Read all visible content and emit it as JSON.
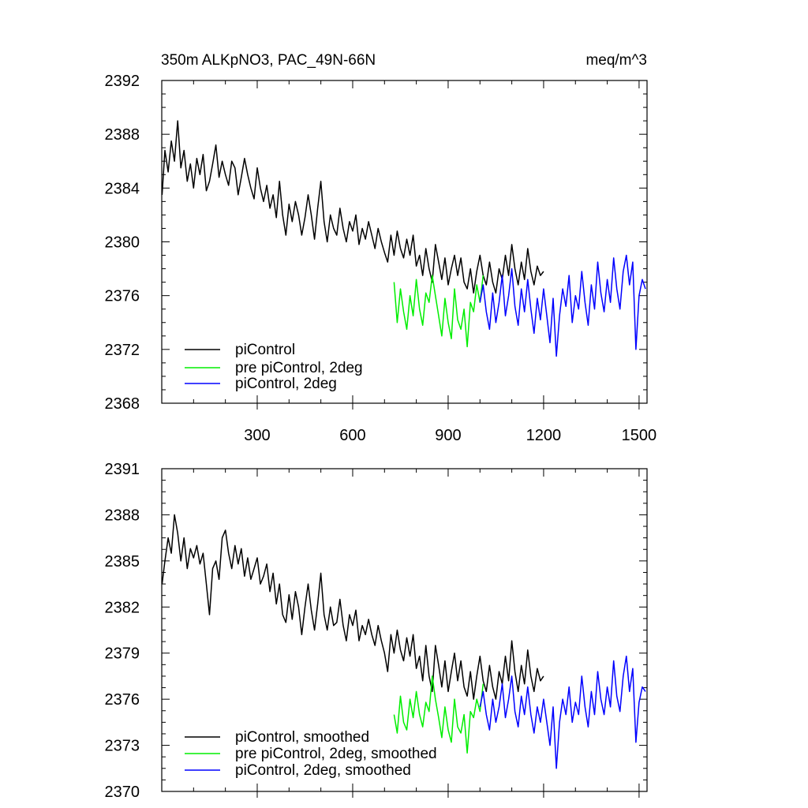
{
  "header": {
    "title": "350m ALKpNO3, PAC_49N-66N",
    "units": "meq/m^3"
  },
  "chart_data": [
    {
      "type": "line",
      "panel": "top",
      "xlim": [
        0,
        1525
      ],
      "ylim": [
        2368,
        2392
      ],
      "xticks": [
        300,
        600,
        900,
        1200,
        1500
      ],
      "yticks": [
        2368,
        2372,
        2376,
        2380,
        2384,
        2388,
        2392
      ],
      "legend_position": "bottom-left",
      "series": [
        {
          "name": "piControl",
          "color": "#000000",
          "x": [
            1,
            10,
            20,
            30,
            40,
            50,
            60,
            70,
            80,
            90,
            100,
            110,
            120,
            130,
            140,
            150,
            160,
            170,
            180,
            190,
            200,
            210,
            220,
            230,
            240,
            250,
            260,
            270,
            280,
            290,
            300,
            310,
            320,
            330,
            340,
            350,
            360,
            370,
            380,
            390,
            400,
            410,
            420,
            430,
            440,
            450,
            460,
            470,
            480,
            490,
            500,
            510,
            520,
            530,
            540,
            550,
            560,
            570,
            580,
            590,
            600,
            610,
            620,
            630,
            640,
            650,
            660,
            670,
            680,
            690,
            700,
            710,
            720,
            730,
            740,
            750,
            760,
            770,
            780,
            790,
            800,
            810,
            820,
            830,
            840,
            850,
            860,
            870,
            880,
            890,
            900,
            910,
            920,
            930,
            940,
            950,
            960,
            970,
            980,
            990,
            1000,
            1010,
            1020,
            1030,
            1040,
            1050,
            1060,
            1070,
            1080,
            1090,
            1100,
            1110,
            1120,
            1130,
            1140,
            1150,
            1160,
            1170,
            1180,
            1190,
            1200
          ],
          "y": [
            2383.5,
            2386.8,
            2385.2,
            2387.5,
            2386.0,
            2389.0,
            2385.5,
            2386.8,
            2384.5,
            2385.8,
            2384.0,
            2386.2,
            2385.0,
            2386.5,
            2383.8,
            2384.5,
            2385.8,
            2387.2,
            2384.8,
            2386.0,
            2385.0,
            2384.2,
            2386.0,
            2385.5,
            2383.5,
            2384.8,
            2386.2,
            2385.0,
            2384.0,
            2383.2,
            2385.5,
            2384.0,
            2383.0,
            2384.2,
            2382.5,
            2383.5,
            2381.8,
            2384.5,
            2382.0,
            2380.5,
            2382.8,
            2381.5,
            2383.0,
            2382.0,
            2380.5,
            2381.8,
            2383.5,
            2382.0,
            2380.2,
            2382.5,
            2384.5,
            2381.5,
            2380.0,
            2382.0,
            2381.0,
            2380.5,
            2382.5,
            2381.0,
            2380.0,
            2381.5,
            2380.8,
            2382.0,
            2379.8,
            2381.0,
            2380.2,
            2381.5,
            2380.5,
            2379.5,
            2381.0,
            2380.0,
            2379.2,
            2378.5,
            2380.5,
            2379.0,
            2380.8,
            2379.5,
            2378.8,
            2380.2,
            2379.0,
            2380.5,
            2378.2,
            2379.0,
            2377.5,
            2379.5,
            2378.0,
            2377.0,
            2379.8,
            2378.5,
            2377.2,
            2378.8,
            2376.8,
            2378.0,
            2379.0,
            2377.5,
            2378.8,
            2377.0,
            2376.5,
            2378.0,
            2376.2,
            2377.8,
            2379.0,
            2377.5,
            2376.8,
            2378.5,
            2377.0,
            2376.2,
            2378.0,
            2377.2,
            2379.0,
            2377.5,
            2379.8,
            2378.0,
            2376.8,
            2378.5,
            2377.2,
            2379.5,
            2377.8,
            2376.8,
            2378.2,
            2377.5,
            2377.8
          ]
        },
        {
          "name": "pre piControl, 2deg",
          "color": "#00ee00",
          "x": [
            730,
            740,
            750,
            760,
            770,
            780,
            790,
            800,
            810,
            820,
            830,
            840,
            850,
            860,
            870,
            880,
            890,
            900,
            910,
            920,
            930,
            940,
            950,
            960,
            970,
            980,
            990,
            1000,
            1010
          ],
          "y": [
            2377.0,
            2374.0,
            2376.5,
            2374.8,
            2373.5,
            2376.0,
            2374.5,
            2377.2,
            2375.0,
            2373.8,
            2376.2,
            2375.5,
            2377.5,
            2376.0,
            2374.5,
            2373.0,
            2375.8,
            2374.0,
            2372.8,
            2376.5,
            2374.2,
            2373.5,
            2375.0,
            2372.2,
            2375.5,
            2374.8,
            2376.8,
            2375.5,
            2377.5
          ]
        },
        {
          "name": "piControl, 2deg",
          "color": "#0000ff",
          "x": [
            1000,
            1010,
            1020,
            1030,
            1040,
            1050,
            1060,
            1070,
            1080,
            1090,
            1100,
            1110,
            1120,
            1130,
            1140,
            1150,
            1160,
            1170,
            1180,
            1190,
            1200,
            1210,
            1220,
            1230,
            1240,
            1250,
            1260,
            1270,
            1280,
            1290,
            1300,
            1310,
            1320,
            1330,
            1340,
            1350,
            1360,
            1370,
            1380,
            1390,
            1400,
            1410,
            1420,
            1430,
            1440,
            1450,
            1460,
            1470,
            1480,
            1490,
            1500,
            1510,
            1520
          ],
          "y": [
            2375.5,
            2376.8,
            2374.8,
            2373.5,
            2376.2,
            2374.0,
            2375.5,
            2377.5,
            2374.5,
            2376.0,
            2378.0,
            2375.2,
            2373.8,
            2376.5,
            2374.8,
            2377.2,
            2375.0,
            2373.2,
            2375.8,
            2374.2,
            2376.5,
            2374.5,
            2372.5,
            2375.8,
            2371.5,
            2374.5,
            2376.5,
            2375.2,
            2377.5,
            2374.0,
            2376.0,
            2375.0,
            2377.8,
            2375.5,
            2373.8,
            2376.8,
            2375.0,
            2378.5,
            2376.2,
            2374.8,
            2377.2,
            2375.5,
            2378.8,
            2376.5,
            2375.0,
            2377.8,
            2379.0,
            2376.8,
            2378.5,
            2372.0,
            2376.0,
            2377.2,
            2376.5
          ]
        }
      ]
    },
    {
      "type": "line",
      "panel": "bottom",
      "xlim": [
        0,
        1525
      ],
      "ylim": [
        2370,
        2391
      ],
      "xticks": [
        300,
        600,
        900,
        1200,
        1500
      ],
      "yticks": [
        2370,
        2373,
        2376,
        2379,
        2382,
        2385,
        2388,
        2391
      ],
      "legend_position": "bottom-left",
      "series": [
        {
          "name": "piControl, smoothed",
          "color": "#000000",
          "x": [
            1,
            10,
            20,
            30,
            40,
            50,
            60,
            70,
            80,
            90,
            100,
            110,
            120,
            130,
            140,
            150,
            160,
            170,
            180,
            190,
            200,
            210,
            220,
            230,
            240,
            250,
            260,
            270,
            280,
            290,
            300,
            310,
            320,
            330,
            340,
            350,
            360,
            370,
            380,
            390,
            400,
            410,
            420,
            430,
            440,
            450,
            460,
            470,
            480,
            490,
            500,
            510,
            520,
            530,
            540,
            550,
            560,
            570,
            580,
            590,
            600,
            610,
            620,
            630,
            640,
            650,
            660,
            670,
            680,
            690,
            700,
            710,
            720,
            730,
            740,
            750,
            760,
            770,
            780,
            790,
            800,
            810,
            820,
            830,
            840,
            850,
            860,
            870,
            880,
            890,
            900,
            910,
            920,
            930,
            940,
            950,
            960,
            970,
            980,
            990,
            1000,
            1010,
            1020,
            1030,
            1040,
            1050,
            1060,
            1070,
            1080,
            1090,
            1100,
            1110,
            1120,
            1130,
            1140,
            1150,
            1160,
            1170,
            1180,
            1190,
            1200
          ],
          "y": [
            2383.5,
            2385.0,
            2386.5,
            2385.5,
            2388.0,
            2386.8,
            2385.0,
            2386.5,
            2384.5,
            2385.8,
            2385.2,
            2386.0,
            2384.8,
            2385.5,
            2383.5,
            2381.5,
            2384.5,
            2385.0,
            2383.8,
            2386.5,
            2387.0,
            2385.5,
            2384.5,
            2386.0,
            2384.8,
            2385.8,
            2384.0,
            2385.2,
            2383.8,
            2384.5,
            2385.2,
            2383.5,
            2384.0,
            2384.8,
            2383.0,
            2384.2,
            2382.2,
            2383.5,
            2381.5,
            2381.0,
            2382.8,
            2381.2,
            2383.0,
            2382.0,
            2380.2,
            2382.0,
            2383.5,
            2381.8,
            2380.5,
            2382.2,
            2384.2,
            2381.5,
            2380.5,
            2382.0,
            2380.8,
            2381.0,
            2382.5,
            2380.8,
            2379.8,
            2381.5,
            2380.8,
            2381.8,
            2379.8,
            2380.8,
            2380.2,
            2381.2,
            2380.2,
            2379.5,
            2380.8,
            2379.8,
            2379.0,
            2377.8,
            2380.2,
            2379.0,
            2380.5,
            2379.2,
            2378.5,
            2380.0,
            2378.8,
            2380.2,
            2378.0,
            2378.8,
            2377.2,
            2379.5,
            2377.5,
            2376.5,
            2379.5,
            2378.2,
            2376.8,
            2378.5,
            2376.5,
            2377.8,
            2379.0,
            2377.2,
            2378.5,
            2376.8,
            2376.2,
            2377.8,
            2376.0,
            2377.5,
            2378.8,
            2377.2,
            2376.5,
            2378.2,
            2376.8,
            2376.0,
            2377.8,
            2377.0,
            2378.8,
            2377.2,
            2379.8,
            2377.8,
            2376.5,
            2378.2,
            2377.0,
            2379.2,
            2377.5,
            2376.5,
            2378.0,
            2377.2,
            2377.5
          ]
        },
        {
          "name": "pre piControl, 2deg, smoothed",
          "color": "#00ee00",
          "x": [
            730,
            740,
            750,
            760,
            770,
            780,
            790,
            800,
            810,
            820,
            830,
            840,
            850,
            860,
            870,
            880,
            890,
            900,
            910,
            920,
            930,
            940,
            950,
            960,
            970,
            980,
            990,
            1000,
            1010
          ],
          "y": [
            2375.0,
            2373.8,
            2376.2,
            2374.5,
            2374.0,
            2376.0,
            2374.8,
            2376.5,
            2375.0,
            2374.2,
            2375.8,
            2375.2,
            2377.5,
            2376.0,
            2374.8,
            2373.5,
            2375.5,
            2374.0,
            2373.2,
            2376.0,
            2374.2,
            2373.8,
            2375.0,
            2372.5,
            2375.2,
            2374.8,
            2376.0,
            2375.2,
            2377.0
          ]
        },
        {
          "name": "piControl, 2deg, smoothed",
          "color": "#0000ff",
          "x": [
            1000,
            1010,
            1020,
            1030,
            1040,
            1050,
            1060,
            1070,
            1080,
            1090,
            1100,
            1110,
            1120,
            1130,
            1140,
            1150,
            1160,
            1170,
            1180,
            1190,
            1200,
            1210,
            1220,
            1230,
            1240,
            1250,
            1260,
            1270,
            1280,
            1290,
            1300,
            1310,
            1320,
            1330,
            1340,
            1350,
            1360,
            1370,
            1380,
            1390,
            1400,
            1410,
            1420,
            1430,
            1440,
            1450,
            1460,
            1470,
            1480,
            1490,
            1500,
            1510,
            1520
          ],
          "y": [
            2375.5,
            2376.5,
            2375.0,
            2374.0,
            2376.0,
            2374.5,
            2375.5,
            2377.0,
            2374.8,
            2376.0,
            2377.5,
            2375.2,
            2374.2,
            2376.2,
            2375.0,
            2376.8,
            2375.0,
            2373.8,
            2375.5,
            2374.5,
            2376.0,
            2374.5,
            2373.0,
            2375.5,
            2371.5,
            2374.5,
            2376.0,
            2375.0,
            2376.8,
            2374.5,
            2375.8,
            2375.0,
            2377.5,
            2375.5,
            2374.2,
            2376.5,
            2375.0,
            2377.8,
            2376.0,
            2375.0,
            2376.8,
            2375.5,
            2378.5,
            2376.2,
            2375.2,
            2377.5,
            2378.8,
            2376.5,
            2378.0,
            2373.2,
            2375.8,
            2376.8,
            2376.5
          ]
        }
      ]
    }
  ]
}
